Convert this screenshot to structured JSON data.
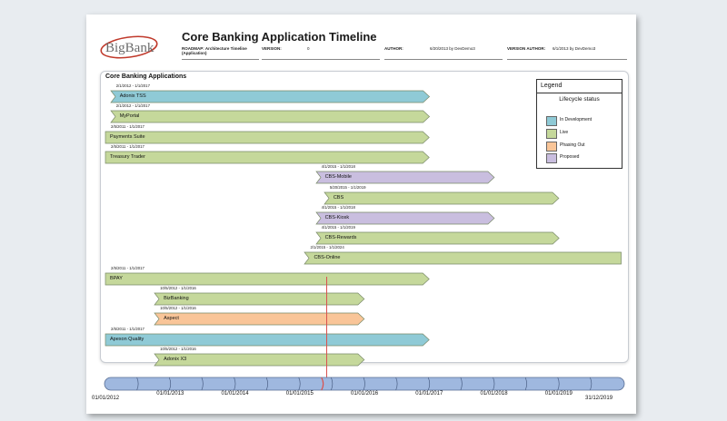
{
  "header": {
    "logo_text": "BigBank",
    "title": "Core Banking Application Timeline",
    "meta": [
      {
        "label": "ROADMAP: Architecture Timeline (Application)",
        "value": ""
      },
      {
        "label": "VERSION:",
        "value": "0"
      },
      {
        "label": "AUTHOR:",
        "value": "6/20/2013 by DevDemo3"
      },
      {
        "label": "VERSION AUTHOR:",
        "value": "6/1/2013 by DevDemo3"
      }
    ]
  },
  "panel": {
    "title": "Core Banking Applications"
  },
  "legend": {
    "title": "Legend",
    "subtitle": "Lifecycle status",
    "items": [
      {
        "status": "In Development",
        "color": "#8fcad6"
      },
      {
        "status": "Live",
        "color": "#c5d89b"
      },
      {
        "status": "Phasing Out",
        "color": "#f9c598"
      },
      {
        "status": "Proposed",
        "color": "#c9bedf"
      }
    ]
  },
  "colors": {
    "In Development": "#8fcad6",
    "Live": "#c5d89b",
    "Phasing Out": "#f9c598",
    "Proposed": "#c9bedf",
    "border": "#7a8a6a",
    "axis": "#9fb8df",
    "today": "#d9534f"
  },
  "chart_data": {
    "type": "gantt",
    "title": "Core Banking Applications",
    "x_range": [
      "01/01/2012",
      "31/12/2019"
    ],
    "x_ticks": [
      "01/01/2012",
      "01/01/2013",
      "01/01/2014",
      "01/01/2015",
      "01/01/2016",
      "01/01/2017",
      "01/01/2018",
      "01/01/2019",
      "31/12/2019"
    ],
    "today_marker": 2015.35,
    "rows": [
      {
        "name": "Adonix TSS",
        "dates": "2/1/2012 - 1/1/2017",
        "start": 2012.08,
        "end": 2017.0,
        "status": "In Development",
        "arrow": true
      },
      {
        "name": "MyPortal",
        "dates": "2/1/2012 - 1/1/2017",
        "start": 2012.08,
        "end": 2017.0,
        "status": "Live",
        "arrow": true
      },
      {
        "name": "Payments Suite",
        "dates": "2/5/2011 - 1/1/2017",
        "start": 2011.1,
        "end": 2017.0,
        "status": "Live",
        "arrow": true
      },
      {
        "name": "Treasury Trader",
        "dates": "2/5/2011 - 1/1/2017",
        "start": 2011.1,
        "end": 2017.0,
        "status": "Live",
        "arrow": true
      },
      {
        "name": "CBS-Mobile",
        "dates": "4/1/2015 - 1/1/2018",
        "start": 2015.25,
        "end": 2018.0,
        "status": "Proposed",
        "arrow": true
      },
      {
        "name": "CBS",
        "dates": "5/20/2015 - 1/1/2019",
        "start": 2015.38,
        "end": 2019.0,
        "status": "Live",
        "arrow": true
      },
      {
        "name": "CBS-Kiosk",
        "dates": "4/1/2015 - 1/1/2018",
        "start": 2015.25,
        "end": 2018.0,
        "status": "Proposed",
        "arrow": true
      },
      {
        "name": "CBS-Rewards",
        "dates": "4/1/2015 - 1/1/2019",
        "start": 2015.25,
        "end": 2019.0,
        "status": "Live",
        "arrow": true
      },
      {
        "name": "CBS-Online",
        "dates": "2/1/2015 - 1/1/2024",
        "start": 2015.08,
        "end": 2024.0,
        "status": "Live",
        "arrow": false
      },
      {
        "name": "BPAY",
        "dates": "2/5/2011 - 1/1/2017",
        "start": 2011.1,
        "end": 2017.0,
        "status": "Live",
        "arrow": true
      },
      {
        "name": "BizBanking",
        "dates": "10/5/2012 - 1/1/2016",
        "start": 2012.76,
        "end": 2016.0,
        "status": "Live",
        "arrow": true
      },
      {
        "name": "Aspect",
        "dates": "10/5/2012 - 1/1/2016",
        "start": 2012.76,
        "end": 2016.0,
        "status": "Phasing Out",
        "arrow": true
      },
      {
        "name": "Apexon Quality",
        "dates": "2/5/2011 - 1/1/2017",
        "start": 2011.1,
        "end": 2017.0,
        "status": "In Development",
        "arrow": true
      },
      {
        "name": "Adonix X3",
        "dates": "10/5/2012 - 1/1/2016",
        "start": 2012.76,
        "end": 2016.0,
        "status": "Live",
        "arrow": true
      }
    ]
  }
}
